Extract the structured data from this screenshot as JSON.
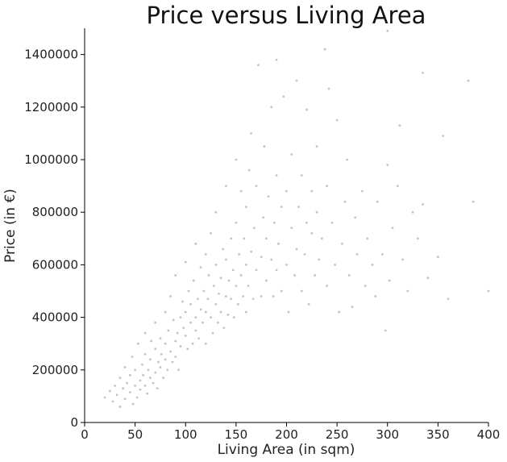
{
  "chart_data": {
    "type": "scatter",
    "title": "Price versus Living Area",
    "xlabel": "Living Area (in sqm)",
    "ylabel": "Price (in €)",
    "xlim": [
      0,
      400
    ],
    "ylim": [
      0,
      1500000
    ],
    "xticks": [
      0,
      50,
      100,
      150,
      200,
      250,
      300,
      350,
      400
    ],
    "yticks": [
      0,
      200000,
      400000,
      600000,
      800000,
      1000000,
      1200000,
      1400000
    ],
    "xtick_labels": [
      "0",
      "50",
      "100",
      "150",
      "200",
      "250",
      "300",
      "350",
      "400"
    ],
    "ytick_labels": [
      "0",
      "200000",
      "400000",
      "600000",
      "800000",
      "1000000",
      "1200000",
      "1400000"
    ],
    "grid": false,
    "point_color": "#7a7a7a",
    "points": [
      [
        20,
        95000
      ],
      [
        25,
        120000
      ],
      [
        28,
        80000
      ],
      [
        30,
        140000
      ],
      [
        32,
        105000
      ],
      [
        35,
        60000
      ],
      [
        35,
        170000
      ],
      [
        38,
        130000
      ],
      [
        40,
        90000
      ],
      [
        40,
        210000
      ],
      [
        42,
        150000
      ],
      [
        45,
        115000
      ],
      [
        45,
        180000
      ],
      [
        47,
        250000
      ],
      [
        48,
        70000
      ],
      [
        50,
        140000
      ],
      [
        50,
        200000
      ],
      [
        52,
        95000
      ],
      [
        53,
        300000
      ],
      [
        55,
        160000
      ],
      [
        55,
        125000
      ],
      [
        57,
        220000
      ],
      [
        58,
        180000
      ],
      [
        60,
        140000
      ],
      [
        60,
        260000
      ],
      [
        60,
        340000
      ],
      [
        62,
        110000
      ],
      [
        63,
        200000
      ],
      [
        65,
        170000
      ],
      [
        65,
        240000
      ],
      [
        66,
        310000
      ],
      [
        68,
        150000
      ],
      [
        70,
        190000
      ],
      [
        70,
        280000
      ],
      [
        70,
        380000
      ],
      [
        72,
        130000
      ],
      [
        73,
        230000
      ],
      [
        75,
        210000
      ],
      [
        75,
        320000
      ],
      [
        76,
        260000
      ],
      [
        78,
        170000
      ],
      [
        80,
        240000
      ],
      [
        80,
        300000
      ],
      [
        80,
        420000
      ],
      [
        82,
        200000
      ],
      [
        83,
        350000
      ],
      [
        85,
        270000
      ],
      [
        85,
        480000
      ],
      [
        87,
        230000
      ],
      [
        88,
        390000
      ],
      [
        90,
        310000
      ],
      [
        90,
        250000
      ],
      [
        90,
        560000
      ],
      [
        92,
        340000
      ],
      [
        93,
        200000
      ],
      [
        95,
        400000
      ],
      [
        95,
        290000
      ],
      [
        97,
        460000
      ],
      [
        98,
        360000
      ],
      [
        100,
        330000
      ],
      [
        100,
        420000
      ],
      [
        100,
        610000
      ],
      [
        102,
        280000
      ],
      [
        103,
        500000
      ],
      [
        105,
        380000
      ],
      [
        105,
        450000
      ],
      [
        107,
        300000
      ],
      [
        108,
        540000
      ],
      [
        110,
        400000
      ],
      [
        110,
        350000
      ],
      [
        110,
        680000
      ],
      [
        112,
        470000
      ],
      [
        113,
        320000
      ],
      [
        115,
        430000
      ],
      [
        115,
        590000
      ],
      [
        117,
        380000
      ],
      [
        118,
        500000
      ],
      [
        120,
        420000
      ],
      [
        120,
        640000
      ],
      [
        120,
        300000
      ],
      [
        122,
        470000
      ],
      [
        123,
        560000
      ],
      [
        125,
        400000
      ],
      [
        125,
        720000
      ],
      [
        127,
        340000
      ],
      [
        128,
        520000
      ],
      [
        130,
        450000
      ],
      [
        130,
        600000
      ],
      [
        130,
        800000
      ],
      [
        132,
        380000
      ],
      [
        133,
        490000
      ],
      [
        135,
        550000
      ],
      [
        135,
        420000
      ],
      [
        137,
        660000
      ],
      [
        138,
        360000
      ],
      [
        140,
        480000
      ],
      [
        140,
        620000
      ],
      [
        140,
        900000
      ],
      [
        142,
        410000
      ],
      [
        143,
        540000
      ],
      [
        145,
        470000
      ],
      [
        145,
        700000
      ],
      [
        147,
        580000
      ],
      [
        148,
        400000
      ],
      [
        150,
        520000
      ],
      [
        150,
        760000
      ],
      [
        150,
        1000000
      ],
      [
        152,
        450000
      ],
      [
        153,
        640000
      ],
      [
        155,
        560000
      ],
      [
        155,
        880000
      ],
      [
        157,
        480000
      ],
      [
        158,
        700000
      ],
      [
        160,
        600000
      ],
      [
        160,
        420000
      ],
      [
        160,
        820000
      ],
      [
        162,
        520000
      ],
      [
        163,
        960000
      ],
      [
        165,
        650000
      ],
      [
        165,
        1100000
      ],
      [
        167,
        470000
      ],
      [
        168,
        740000
      ],
      [
        170,
        580000
      ],
      [
        170,
        900000
      ],
      [
        172,
        1360000
      ],
      [
        175,
        630000
      ],
      [
        175,
        480000
      ],
      [
        177,
        780000
      ],
      [
        178,
        1050000
      ],
      [
        180,
        540000
      ],
      [
        180,
        700000
      ],
      [
        182,
        860000
      ],
      [
        185,
        620000
      ],
      [
        185,
        1200000
      ],
      [
        187,
        480000
      ],
      [
        188,
        760000
      ],
      [
        190,
        580000
      ],
      [
        190,
        940000
      ],
      [
        190,
        1380000
      ],
      [
        192,
        680000
      ],
      [
        195,
        820000
      ],
      [
        195,
        500000
      ],
      [
        197,
        1240000
      ],
      [
        200,
        600000
      ],
      [
        200,
        880000
      ],
      [
        202,
        420000
      ],
      [
        205,
        740000
      ],
      [
        205,
        1020000
      ],
      [
        208,
        560000
      ],
      [
        210,
        660000
      ],
      [
        210,
        1300000
      ],
      [
        212,
        820000
      ],
      [
        215,
        500000
      ],
      [
        215,
        940000
      ],
      [
        218,
        640000
      ],
      [
        220,
        760000
      ],
      [
        220,
        1190000
      ],
      [
        222,
        450000
      ],
      [
        225,
        720000
      ],
      [
        225,
        880000
      ],
      [
        228,
        560000
      ],
      [
        230,
        800000
      ],
      [
        230,
        1050000
      ],
      [
        232,
        620000
      ],
      [
        235,
        700000
      ],
      [
        238,
        1420000
      ],
      [
        240,
        520000
      ],
      [
        240,
        900000
      ],
      [
        242,
        1270000
      ],
      [
        245,
        760000
      ],
      [
        248,
        600000
      ],
      [
        250,
        1150000
      ],
      [
        252,
        420000
      ],
      [
        255,
        680000
      ],
      [
        258,
        840000
      ],
      [
        260,
        1000000
      ],
      [
        262,
        560000
      ],
      [
        265,
        440000
      ],
      [
        268,
        780000
      ],
      [
        270,
        640000
      ],
      [
        275,
        880000
      ],
      [
        278,
        520000
      ],
      [
        280,
        700000
      ],
      [
        285,
        600000
      ],
      [
        288,
        480000
      ],
      [
        290,
        840000
      ],
      [
        295,
        640000
      ],
      [
        298,
        350000
      ],
      [
        300,
        980000
      ],
      [
        300,
        1490000
      ],
      [
        302,
        540000
      ],
      [
        305,
        740000
      ],
      [
        310,
        900000
      ],
      [
        312,
        1130000
      ],
      [
        315,
        620000
      ],
      [
        320,
        500000
      ],
      [
        325,
        800000
      ],
      [
        330,
        700000
      ],
      [
        335,
        830000
      ],
      [
        335,
        1330000
      ],
      [
        340,
        550000
      ],
      [
        350,
        630000
      ],
      [
        355,
        1090000
      ],
      [
        360,
        470000
      ],
      [
        380,
        1300000
      ],
      [
        385,
        840000
      ],
      [
        400,
        500000
      ]
    ]
  }
}
